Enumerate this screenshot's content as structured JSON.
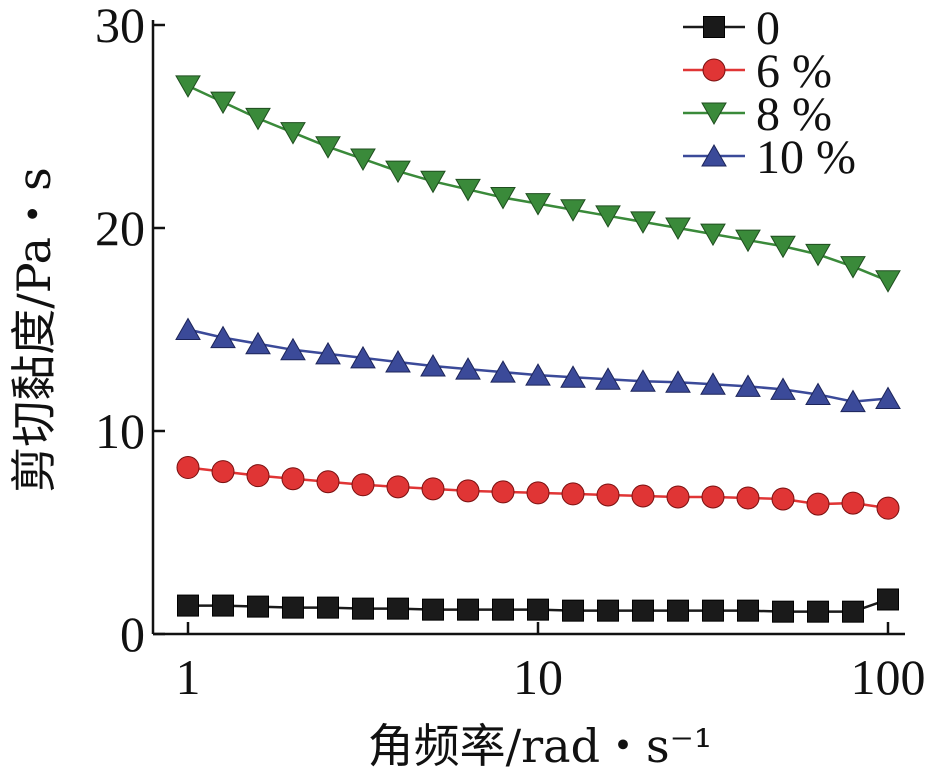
{
  "chart_data": {
    "type": "line",
    "xlabel": "角频率/rad・s⁻¹",
    "ylabel": "剪切黏度/Pa・s",
    "xscale": "log",
    "xlim": [
      1,
      100
    ],
    "ylim": [
      0,
      30
    ],
    "xticks": [
      1,
      10,
      100
    ],
    "xtick_labels": [
      "1",
      "10",
      "100"
    ],
    "yticks": [
      0,
      10,
      20,
      30
    ],
    "ytick_labels": [
      "0",
      "10",
      "20",
      "30"
    ],
    "grid": false,
    "legend_position": "top-right",
    "x": [
      1,
      1.259,
      1.585,
      1.995,
      2.512,
      3.162,
      3.981,
      5.012,
      6.31,
      7.943,
      10,
      12.59,
      15.85,
      19.95,
      25.12,
      31.62,
      39.81,
      50.12,
      63.1,
      79.43,
      100
    ],
    "series": [
      {
        "name": "0",
        "color": "#1a1a1a",
        "marker": "square",
        "values": [
          1.4,
          1.4,
          1.35,
          1.3,
          1.3,
          1.25,
          1.25,
          1.2,
          1.2,
          1.2,
          1.2,
          1.15,
          1.15,
          1.15,
          1.15,
          1.15,
          1.15,
          1.1,
          1.1,
          1.1,
          1.7
        ]
      },
      {
        "name": "6 %",
        "color": "#e03535",
        "marker": "circle",
        "values": [
          8.2,
          8.0,
          7.8,
          7.65,
          7.5,
          7.35,
          7.25,
          7.15,
          7.05,
          7.0,
          6.95,
          6.9,
          6.85,
          6.8,
          6.75,
          6.75,
          6.7,
          6.65,
          6.4,
          6.45,
          6.2
        ]
      },
      {
        "name": "8 %",
        "color": "#3a8a3a",
        "marker": "triangle-down",
        "values": [
          27.0,
          26.2,
          25.4,
          24.7,
          24.0,
          23.4,
          22.8,
          22.3,
          21.9,
          21.5,
          21.2,
          20.9,
          20.6,
          20.3,
          20.0,
          19.7,
          19.4,
          19.1,
          18.7,
          18.1,
          17.4
        ]
      },
      {
        "name": "10 %",
        "color": "#3b4a99",
        "marker": "triangle-up",
        "values": [
          15.0,
          14.6,
          14.3,
          14.0,
          13.8,
          13.6,
          13.4,
          13.2,
          13.05,
          12.9,
          12.75,
          12.65,
          12.55,
          12.45,
          12.4,
          12.3,
          12.2,
          12.05,
          11.8,
          11.45,
          11.6
        ]
      }
    ]
  }
}
